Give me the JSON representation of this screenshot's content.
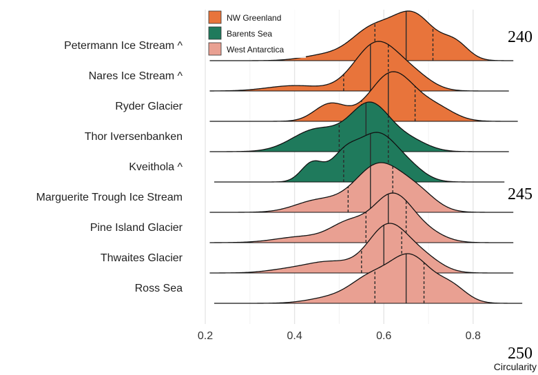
{
  "page_numbers": [
    "240",
    "245",
    "250"
  ],
  "chart_data": {
    "type": "ridgeline",
    "xlabel": "Circularity",
    "ylabel": "",
    "title": "",
    "xlim": [
      0.18,
      0.92
    ],
    "x_ticks": [
      "0.2",
      "0.4",
      "0.6",
      "0.8"
    ],
    "x_tick_values": [
      0.2,
      0.4,
      0.6,
      0.8
    ],
    "grid": true,
    "legend_position": "top-left",
    "legend": [
      {
        "name": "NW Greenland",
        "color": "#E8743B"
      },
      {
        "name": "Barents Sea",
        "color": "#1F7A5C"
      },
      {
        "name": "West Antarctica",
        "color": "#E9A092"
      }
    ],
    "series": [
      {
        "name": "Petermann Ice Stream ^",
        "group": "NW Greenland",
        "range": [
          0.21,
          0.89
        ],
        "median": 0.65,
        "q1": 0.58,
        "q3": 0.71,
        "peaks": [
          {
            "mu": 0.665,
            "sd": 0.048,
            "w": 0.65
          },
          {
            "mu": 0.57,
            "sd": 0.045,
            "w": 0.4
          },
          {
            "mu": 0.76,
            "sd": 0.03,
            "w": 0.22
          },
          {
            "mu": 0.47,
            "sd": 0.05,
            "w": 0.08
          }
        ]
      },
      {
        "name": "Nares Ice Stream ^",
        "group": "NW Greenland",
        "range": [
          0.21,
          0.88
        ],
        "median": 0.57,
        "q1": 0.51,
        "q3": 0.61,
        "peaks": [
          {
            "mu": 0.585,
            "sd": 0.05,
            "w": 0.9
          },
          {
            "mu": 0.4,
            "sd": 0.06,
            "w": 0.1
          },
          {
            "mu": 0.67,
            "sd": 0.04,
            "w": 0.22
          }
        ]
      },
      {
        "name": "Ryder Glacier",
        "group": "NW Greenland",
        "range": [
          0.21,
          0.9
        ],
        "median": 0.61,
        "q1": 0.55,
        "q3": 0.67,
        "peaks": [
          {
            "mu": 0.62,
            "sd": 0.05,
            "w": 0.85
          },
          {
            "mu": 0.48,
            "sd": 0.035,
            "w": 0.3
          },
          {
            "mu": 0.72,
            "sd": 0.04,
            "w": 0.2
          }
        ]
      },
      {
        "name": "Thor Iversenbanken",
        "group": "Barents Sea",
        "range": [
          0.21,
          0.88
        ],
        "median": 0.56,
        "q1": 0.5,
        "q3": 0.61,
        "peaks": [
          {
            "mu": 0.57,
            "sd": 0.045,
            "w": 0.95
          },
          {
            "mu": 0.45,
            "sd": 0.055,
            "w": 0.45
          },
          {
            "mu": 0.66,
            "sd": 0.04,
            "w": 0.2
          }
        ]
      },
      {
        "name": "Kveithola ^",
        "group": "Barents Sea",
        "range": [
          0.22,
          0.87
        ],
        "median": 0.57,
        "q1": 0.51,
        "q3": 0.61,
        "peaks": [
          {
            "mu": 0.585,
            "sd": 0.045,
            "w": 0.95
          },
          {
            "mu": 0.44,
            "sd": 0.025,
            "w": 0.38
          },
          {
            "mu": 0.51,
            "sd": 0.03,
            "w": 0.45
          },
          {
            "mu": 0.66,
            "sd": 0.035,
            "w": 0.2
          }
        ]
      },
      {
        "name": "Marguerite Trough Ice Stream",
        "group": "West Antarctica",
        "range": [
          0.21,
          0.89
        ],
        "median": 0.57,
        "q1": 0.52,
        "q3": 0.62,
        "peaks": [
          {
            "mu": 0.59,
            "sd": 0.055,
            "w": 0.85
          },
          {
            "mu": 0.45,
            "sd": 0.05,
            "w": 0.2
          },
          {
            "mu": 0.68,
            "sd": 0.04,
            "w": 0.25
          }
        ]
      },
      {
        "name": "Pine Island Glacier",
        "group": "West Antarctica",
        "range": [
          0.21,
          0.89
        ],
        "median": 0.61,
        "q1": 0.56,
        "q3": 0.65,
        "peaks": [
          {
            "mu": 0.62,
            "sd": 0.045,
            "w": 0.95
          },
          {
            "mu": 0.52,
            "sd": 0.04,
            "w": 0.35
          },
          {
            "mu": 0.42,
            "sd": 0.06,
            "w": 0.12
          },
          {
            "mu": 0.7,
            "sd": 0.04,
            "w": 0.15
          }
        ]
      },
      {
        "name": "Thwaites Glacier",
        "group": "West Antarctica",
        "range": [
          0.21,
          0.89
        ],
        "median": 0.6,
        "q1": 0.55,
        "q3": 0.64,
        "peaks": [
          {
            "mu": 0.61,
            "sd": 0.045,
            "w": 0.9
          },
          {
            "mu": 0.48,
            "sd": 0.05,
            "w": 0.2
          },
          {
            "mu": 0.39,
            "sd": 0.05,
            "w": 0.07
          },
          {
            "mu": 0.69,
            "sd": 0.04,
            "w": 0.25
          }
        ]
      },
      {
        "name": "Ross Sea",
        "group": "West Antarctica",
        "range": [
          0.22,
          0.91
        ],
        "median": 0.65,
        "q1": 0.58,
        "q3": 0.69,
        "peaks": [
          {
            "mu": 0.66,
            "sd": 0.045,
            "w": 0.85
          },
          {
            "mu": 0.57,
            "sd": 0.045,
            "w": 0.45
          },
          {
            "mu": 0.75,
            "sd": 0.035,
            "w": 0.3
          },
          {
            "mu": 0.48,
            "sd": 0.05,
            "w": 0.1
          }
        ]
      }
    ]
  }
}
